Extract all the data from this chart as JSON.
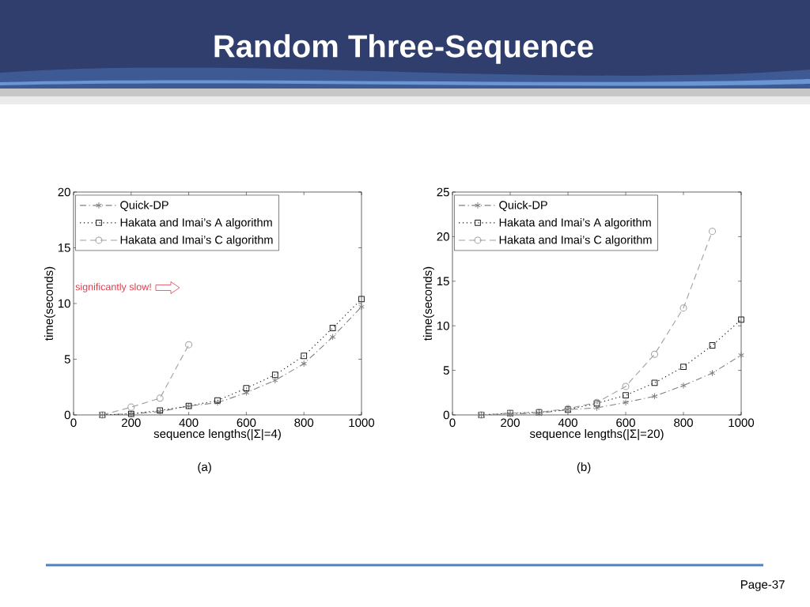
{
  "chart_data": [
    {
      "type": "line",
      "title": "Random Three-Sequence",
      "xlabel": "sequence lengths(|Σ|=4)",
      "ylabel": "time(seconds)",
      "x": [
        100,
        200,
        300,
        400,
        500,
        600,
        700,
        800,
        900,
        1000
      ],
      "xlim": [
        0,
        1000
      ],
      "ylim": [
        0,
        20
      ],
      "xticks": [
        0,
        200,
        400,
        600,
        800,
        1000
      ],
      "yticks": [
        0,
        5,
        10,
        15,
        20
      ],
      "legend": "top left",
      "series": [
        {
          "name": "Quick-DP",
          "color": "#808080",
          "marker": "cross",
          "line_style": "dashdot",
          "values": [
            0,
            0.1,
            0.3,
            0.8,
            1.1,
            2.0,
            3.1,
            4.6,
            7.0,
            9.7
          ]
        },
        {
          "name": "Hakata and Imai’s A algorithm",
          "color": "#1e1e1e",
          "marker": "square",
          "line_style": "dotted",
          "values": [
            0,
            0.1,
            0.4,
            0.8,
            1.3,
            2.4,
            3.6,
            5.3,
            7.8,
            10.4
          ]
        },
        {
          "name": "Hakata and Imai’s C algorithm",
          "color": "#a0a0a0",
          "marker": "circle",
          "line_style": "dashed",
          "x": [
            100,
            200,
            300,
            400
          ],
          "values": [
            0,
            0.7,
            1.5,
            6.3
          ]
        }
      ],
      "annotations": [
        "(a)",
        "significantly slow!"
      ]
    },
    {
      "type": "line",
      "xlabel": "sequence lengths(|Σ|=20)",
      "ylabel": "time(seconds)",
      "x": [
        100,
        200,
        300,
        400,
        500,
        600,
        700,
        800,
        900,
        1000
      ],
      "xlim": [
        0,
        1000
      ],
      "ylim": [
        0,
        25
      ],
      "xticks": [
        0,
        200,
        400,
        600,
        800,
        1000
      ],
      "yticks": [
        0,
        5,
        10,
        15,
        20,
        25
      ],
      "legend": "top left",
      "series": [
        {
          "name": "Quick-DP",
          "color": "#808080",
          "marker": "cross",
          "line_style": "dashdot",
          "values": [
            0,
            0.1,
            0.2,
            0.6,
            0.8,
            1.4,
            2.1,
            3.3,
            4.7,
            6.7
          ]
        },
        {
          "name": "Hakata and Imai’s A algorithm",
          "color": "#1e1e1e",
          "marker": "square",
          "line_style": "dotted",
          "values": [
            0,
            0.2,
            0.3,
            0.6,
            1.3,
            2.2,
            3.6,
            5.4,
            7.8,
            10.7
          ]
        },
        {
          "name": "Hakata and Imai’s C algorithm",
          "color": "#a0a0a0",
          "marker": "circle",
          "line_style": "dashed",
          "x": [
            100,
            200,
            300,
            400,
            500,
            600,
            700,
            800,
            900
          ],
          "values": [
            0,
            0.2,
            0.3,
            0.7,
            1.4,
            3.2,
            6.8,
            12.0,
            20.6
          ]
        }
      ],
      "annotations": [
        "(b)",
        "Page-37"
      ]
    }
  ]
}
